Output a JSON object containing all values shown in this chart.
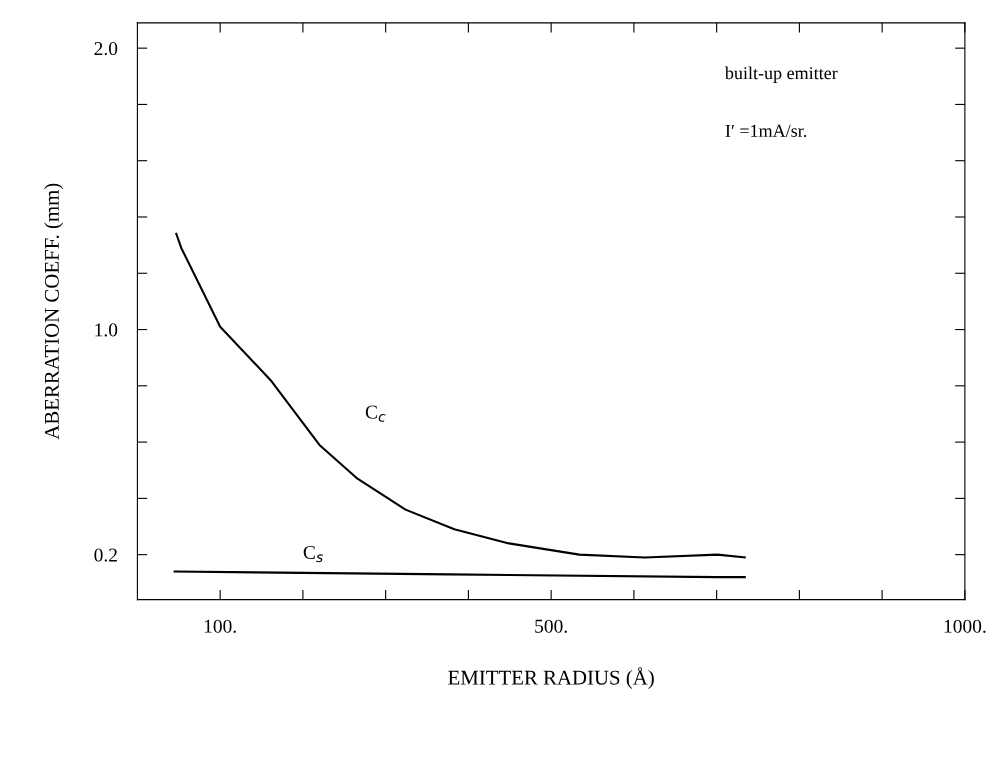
{
  "chart_data": {
    "type": "line",
    "xlabel": "EMITTER RADIUS (Å)",
    "ylabel": "ABERRATION COEFF. (mm)",
    "xlim": [
      0,
      1000
    ],
    "ylim": [
      0.04,
      2.09
    ],
    "xticks": [
      {
        "value": 100,
        "label": "100."
      },
      {
        "value": 200,
        "label": null
      },
      {
        "value": 300,
        "label": null
      },
      {
        "value": 400,
        "label": null
      },
      {
        "value": 500,
        "label": "500."
      },
      {
        "value": 600,
        "label": null
      },
      {
        "value": 700,
        "label": null
      },
      {
        "value": 800,
        "label": null
      },
      {
        "value": 900,
        "label": null
      },
      {
        "value": 1000,
        "label": "1000."
      }
    ],
    "yticks": [
      {
        "value": 0.2,
        "label": "0.2"
      },
      {
        "value": 0.4,
        "label": null
      },
      {
        "value": 0.6,
        "label": null
      },
      {
        "value": 0.8,
        "label": null
      },
      {
        "value": 1.0,
        "label": "1.0"
      },
      {
        "value": 1.2,
        "label": null
      },
      {
        "value": 1.4,
        "label": null
      },
      {
        "value": 1.6,
        "label": null
      },
      {
        "value": 1.8,
        "label": null
      },
      {
        "value": 2.0,
        "label": "2.0"
      }
    ],
    "grid": false,
    "legend": false,
    "marker": "none",
    "line_style": "solid",
    "series": [
      {
        "name": "C$_{c}$",
        "color": "#000000",
        "x": [
          47,
          53,
          100,
          161,
          220,
          266,
          324,
          383,
          449,
          534,
          613,
          701,
          734
        ],
        "values": [
          1.34,
          1.29,
          1.01,
          0.82,
          0.59,
          0.47,
          0.36,
          0.29,
          0.24,
          0.2,
          0.19,
          0.2,
          0.19
        ]
      },
      {
        "name": "C$_{s}$",
        "color": "#000000",
        "x": [
          45,
          377,
          701,
          734
        ],
        "values": [
          0.14,
          0.13,
          0.12,
          0.12
        ]
      }
    ],
    "annotations": [
      "built-up emitter",
      "I′ =1mA/sr."
    ]
  }
}
